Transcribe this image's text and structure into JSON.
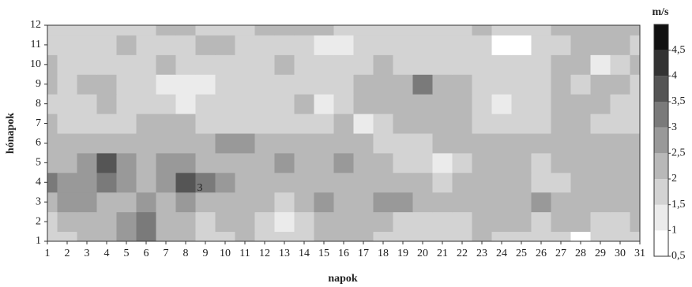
{
  "chart_data": {
    "type": "contour",
    "xlabel": "napok",
    "ylabel": "hónapok",
    "colorbar_label": "m/s",
    "x": [
      1,
      2,
      3,
      4,
      5,
      6,
      7,
      8,
      9,
      10,
      11,
      12,
      13,
      14,
      15,
      16,
      17,
      18,
      19,
      20,
      21,
      22,
      23,
      24,
      25,
      26,
      27,
      28,
      29,
      30,
      31
    ],
    "y": [
      1,
      2,
      3,
      4,
      5,
      6,
      7,
      8,
      9,
      10,
      11,
      12
    ],
    "xlim": [
      1,
      31
    ],
    "ylim": [
      1,
      12
    ],
    "xticks": [
      1,
      2,
      3,
      4,
      5,
      6,
      7,
      8,
      9,
      10,
      11,
      12,
      13,
      14,
      15,
      16,
      17,
      18,
      19,
      20,
      21,
      22,
      23,
      24,
      25,
      26,
      27,
      28,
      29,
      30,
      31
    ],
    "yticks": [
      1,
      2,
      3,
      4,
      5,
      6,
      7,
      8,
      9,
      10,
      11,
      12
    ],
    "z": [
      [
        1.6,
        1.8,
        2.0,
        2.1,
        2.6,
        3.2,
        2.4,
        2.0,
        1.8,
        1.9,
        2.0,
        1.6,
        1.7,
        1.8,
        2.0,
        2.2,
        2.0,
        1.8,
        1.9,
        1.8,
        1.7,
        1.8,
        2.0,
        1.9,
        1.8,
        1.7,
        1.6,
        0.9,
        1.6,
        1.8,
        1.9
      ],
      [
        1.8,
        2.0,
        2.3,
        2.4,
        2.8,
        3.3,
        2.2,
        2.0,
        1.9,
        2.1,
        2.0,
        1.8,
        1.4,
        1.5,
        2.0,
        2.1,
        2.2,
        2.1,
        1.9,
        1.8,
        1.7,
        1.6,
        2.0,
        2.2,
        2.0,
        1.9,
        2.1,
        2.0,
        1.9,
        1.8,
        2.0
      ],
      [
        2.4,
        2.6,
        2.5,
        2.3,
        2.4,
        2.6,
        2.2,
        2.5,
        2.4,
        2.2,
        2.0,
        2.3,
        1.9,
        2.1,
        2.6,
        2.2,
        2.1,
        2.5,
        2.6,
        2.4,
        2.2,
        2.1,
        2.0,
        2.1,
        2.2,
        2.6,
        2.2,
        2.3,
        2.4,
        2.2,
        2.1
      ],
      [
        3.0,
        2.6,
        2.8,
        3.0,
        2.6,
        2.4,
        2.8,
        3.8,
        3.2,
        2.5,
        2.3,
        2.4,
        2.2,
        2.3,
        2.4,
        2.2,
        2.1,
        2.0,
        2.2,
        2.0,
        1.9,
        2.0,
        2.1,
        2.0,
        2.2,
        1.8,
        1.9,
        2.0,
        2.1,
        2.4,
        2.0
      ],
      [
        2.3,
        2.4,
        2.6,
        3.5,
        2.6,
        2.4,
        2.5,
        2.6,
        2.4,
        2.3,
        2.2,
        2.3,
        2.6,
        2.4,
        2.3,
        2.6,
        2.3,
        2.1,
        1.9,
        1.8,
        1.4,
        1.9,
        2.0,
        2.1,
        2.3,
        1.8,
        2.1,
        2.2,
        2.0,
        2.1,
        2.3
      ],
      [
        2.2,
        2.0,
        2.1,
        2.2,
        2.2,
        2.0,
        2.2,
        2.3,
        2.3,
        2.6,
        2.5,
        2.4,
        2.3,
        2.2,
        2.1,
        2.0,
        2.0,
        1.9,
        1.8,
        1.9,
        2.0,
        2.1,
        2.2,
        2.3,
        2.2,
        2.1,
        2.2,
        2.3,
        2.2,
        2.1,
        2.0
      ],
      [
        2.1,
        1.8,
        1.7,
        1.8,
        1.9,
        2.0,
        2.2,
        2.1,
        1.8,
        1.7,
        1.9,
        1.8,
        1.7,
        1.9,
        1.8,
        2.0,
        1.4,
        1.8,
        2.0,
        2.1,
        2.2,
        2.0,
        1.9,
        1.8,
        1.7,
        1.8,
        2.0,
        2.1,
        1.9,
        1.8,
        1.7
      ],
      [
        1.6,
        1.8,
        1.9,
        2.0,
        1.8,
        1.7,
        1.6,
        1.4,
        1.5,
        1.8,
        1.7,
        1.6,
        1.9,
        2.2,
        1.4,
        1.9,
        2.0,
        2.0,
        2.2,
        2.4,
        2.1,
        2.0,
        1.8,
        1.4,
        1.7,
        1.8,
        2.0,
        2.4,
        2.1,
        1.9,
        1.8
      ],
      [
        2.0,
        1.8,
        2.3,
        2.2,
        1.8,
        1.7,
        1.4,
        1.3,
        1.4,
        1.5,
        1.8,
        1.9,
        1.7,
        1.8,
        1.9,
        1.9,
        2.0,
        2.1,
        2.3,
        3.4,
        2.2,
        2.0,
        1.8,
        1.7,
        1.8,
        1.9,
        2.0,
        1.8,
        2.2,
        2.0,
        1.9
      ],
      [
        2.0,
        1.8,
        1.7,
        1.8,
        1.9,
        1.8,
        2.2,
        1.8,
        1.6,
        1.5,
        1.7,
        1.9,
        2.0,
        1.8,
        1.7,
        1.7,
        1.8,
        2.0,
        1.8,
        1.6,
        1.7,
        1.8,
        1.9,
        1.6,
        1.8,
        1.9,
        2.0,
        2.1,
        1.4,
        1.8,
        2.0
      ],
      [
        1.9,
        1.8,
        1.7,
        1.6,
        2.2,
        1.8,
        1.7,
        1.8,
        2.0,
        2.1,
        1.9,
        1.8,
        1.7,
        1.8,
        1.4,
        1.3,
        1.6,
        1.8,
        1.9,
        1.7,
        1.6,
        1.7,
        1.8,
        0.9,
        0.9,
        1.6,
        1.8,
        2.0,
        2.2,
        2.0,
        1.9
      ],
      [
        1.8,
        1.7,
        1.8,
        1.6,
        1.7,
        1.8,
        2.1,
        2.0,
        1.8,
        1.6,
        1.7,
        2.0,
        2.1,
        2.2,
        2.1,
        1.8,
        1.7,
        1.8,
        1.8,
        1.7,
        1.6,
        1.8,
        2.0,
        1.7,
        1.8,
        1.9,
        2.0,
        2.1,
        2.2,
        2.1,
        2.0
      ]
    ],
    "levels": [
      0.5,
      1,
      1.5,
      2,
      2.5,
      3,
      3.5,
      4,
      4.5,
      5
    ],
    "level_colors": [
      "#ffffff",
      "#ebebeb",
      "#d3d3d3",
      "#b8b8b8",
      "#999999",
      "#7a7a7a",
      "#555555",
      "#333333",
      "#111111"
    ],
    "zlim": [
      0.5,
      5
    ],
    "zticks": [
      {
        "value": 0.5,
        "label": "0,5"
      },
      1,
      {
        "value": 1.5,
        "label": "1,5"
      },
      2,
      {
        "value": 2.5,
        "label": "2,5"
      },
      3,
      {
        "value": 3.5,
        "label": "3,5"
      },
      4,
      {
        "value": 4.5,
        "label": "4,5"
      }
    ],
    "annotations": [
      {
        "text": "3"
      }
    ]
  }
}
